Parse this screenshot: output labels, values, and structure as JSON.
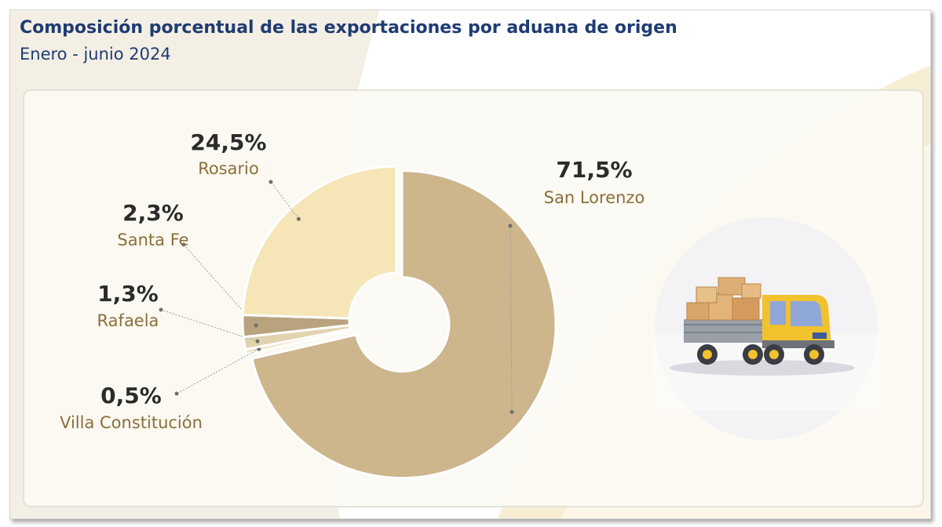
{
  "header": {
    "title": "Composición porcentual de las exportaciones por aduana de origen",
    "subtitle": "Enero - junio 2024"
  },
  "chart_data": {
    "type": "pie",
    "variant": "donut",
    "title": "Composición porcentual de las exportaciones por aduana de origen",
    "subtitle": "Enero - junio 2024",
    "unit": "%",
    "slices": [
      {
        "label": "San Lorenzo",
        "value": 71.5,
        "display": "71,5%",
        "color": "#cdb58c",
        "exploded": true
      },
      {
        "label": "Villa Constitución",
        "value": 0.5,
        "display": "0,5%",
        "color": "#ede3c8"
      },
      {
        "label": "Rafaela",
        "value": 1.3,
        "display": "1,3%",
        "color": "#e2d3b0"
      },
      {
        "label": "Santa Fe",
        "value": 2.3,
        "display": "2,3%",
        "color": "#b9a37e"
      },
      {
        "label": "Rosario",
        "value": 24.5,
        "display": "24,5%",
        "color": "#f6e6b7"
      }
    ],
    "legend": "none",
    "grid": false
  },
  "illustration": {
    "icon": "delivery-truck-icon"
  }
}
